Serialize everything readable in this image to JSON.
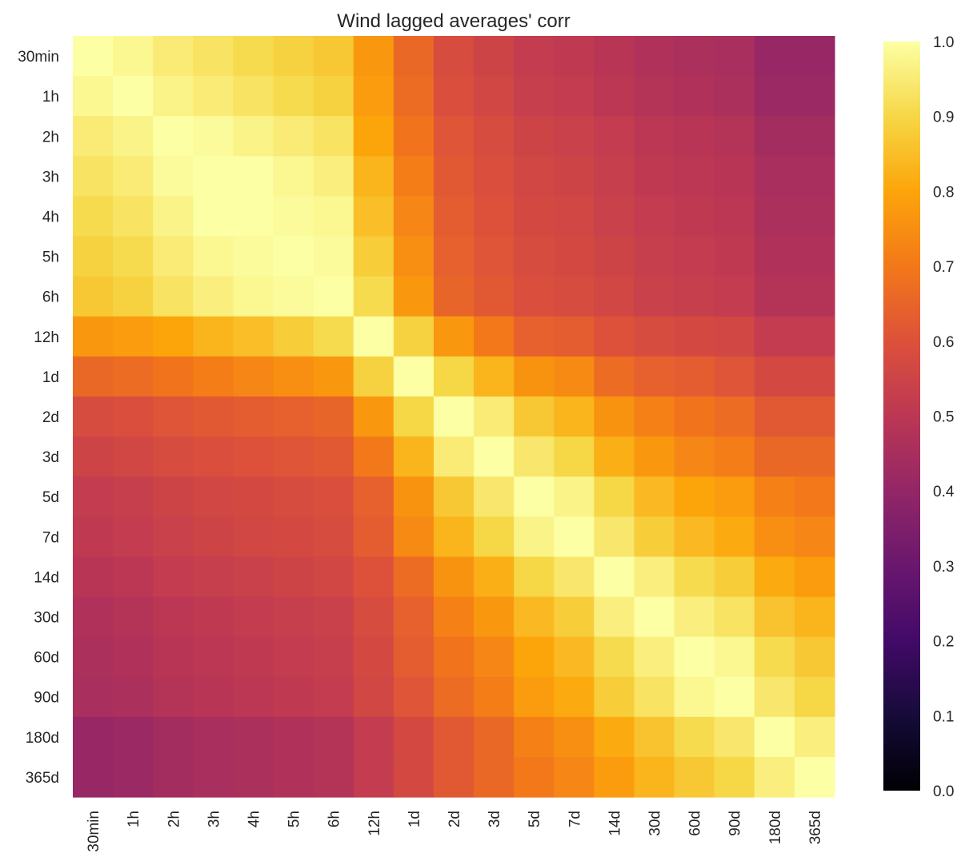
{
  "chart_data": {
    "type": "heatmap",
    "title": "Wind lagged averages' corr",
    "xlabel": "",
    "ylabel": "",
    "categories": [
      "30min",
      "1h",
      "2h",
      "3h",
      "4h",
      "5h",
      "6h",
      "12h",
      "1d",
      "2d",
      "3d",
      "5d",
      "7d",
      "14d",
      "30d",
      "60d",
      "90d",
      "180d",
      "365d"
    ],
    "colormap": "inferno",
    "value_range": [
      0.0,
      1.0
    ],
    "colorbar_ticks": [
      "0.0",
      "0.1",
      "0.2",
      "0.3",
      "0.4",
      "0.5",
      "0.6",
      "0.7",
      "0.8",
      "0.9",
      "1.0"
    ],
    "grid": false,
    "legend": "colorbar-right",
    "matrix": [
      [
        1.0,
        0.98,
        0.95,
        0.93,
        0.91,
        0.89,
        0.87,
        0.77,
        0.66,
        0.58,
        0.55,
        0.52,
        0.51,
        0.49,
        0.47,
        0.46,
        0.45,
        0.41,
        0.41
      ],
      [
        0.98,
        1.0,
        0.97,
        0.95,
        0.93,
        0.91,
        0.89,
        0.78,
        0.67,
        0.59,
        0.56,
        0.53,
        0.52,
        0.5,
        0.48,
        0.47,
        0.46,
        0.42,
        0.42
      ],
      [
        0.95,
        0.97,
        1.0,
        0.99,
        0.97,
        0.95,
        0.93,
        0.8,
        0.69,
        0.61,
        0.58,
        0.55,
        0.54,
        0.52,
        0.5,
        0.49,
        0.48,
        0.44,
        0.44
      ],
      [
        0.93,
        0.95,
        0.99,
        1.0,
        1.0,
        0.98,
        0.96,
        0.83,
        0.71,
        0.62,
        0.59,
        0.56,
        0.55,
        0.53,
        0.51,
        0.5,
        0.49,
        0.45,
        0.45
      ],
      [
        0.91,
        0.93,
        0.97,
        1.0,
        1.0,
        0.99,
        0.98,
        0.85,
        0.73,
        0.63,
        0.6,
        0.57,
        0.56,
        0.54,
        0.52,
        0.51,
        0.5,
        0.46,
        0.46
      ],
      [
        0.89,
        0.91,
        0.95,
        0.98,
        0.99,
        1.0,
        0.99,
        0.88,
        0.75,
        0.64,
        0.61,
        0.58,
        0.57,
        0.55,
        0.53,
        0.52,
        0.51,
        0.47,
        0.47
      ],
      [
        0.87,
        0.89,
        0.93,
        0.96,
        0.98,
        0.99,
        1.0,
        0.91,
        0.77,
        0.65,
        0.62,
        0.59,
        0.58,
        0.56,
        0.54,
        0.53,
        0.52,
        0.48,
        0.48
      ],
      [
        0.77,
        0.78,
        0.8,
        0.83,
        0.85,
        0.88,
        0.91,
        1.0,
        0.89,
        0.77,
        0.7,
        0.64,
        0.63,
        0.6,
        0.58,
        0.57,
        0.56,
        0.52,
        0.52
      ],
      [
        0.66,
        0.67,
        0.69,
        0.71,
        0.73,
        0.75,
        0.77,
        0.89,
        1.0,
        0.9,
        0.83,
        0.76,
        0.74,
        0.67,
        0.64,
        0.63,
        0.61,
        0.57,
        0.57
      ],
      [
        0.58,
        0.59,
        0.61,
        0.62,
        0.63,
        0.64,
        0.65,
        0.77,
        0.9,
        1.0,
        0.95,
        0.87,
        0.83,
        0.76,
        0.72,
        0.69,
        0.67,
        0.62,
        0.62
      ],
      [
        0.55,
        0.56,
        0.58,
        0.59,
        0.6,
        0.61,
        0.62,
        0.7,
        0.83,
        0.95,
        1.0,
        0.94,
        0.9,
        0.82,
        0.77,
        0.73,
        0.71,
        0.66,
        0.66
      ],
      [
        0.52,
        0.53,
        0.55,
        0.56,
        0.57,
        0.58,
        0.59,
        0.64,
        0.76,
        0.87,
        0.94,
        1.0,
        0.97,
        0.9,
        0.84,
        0.8,
        0.78,
        0.72,
        0.7
      ],
      [
        0.51,
        0.52,
        0.54,
        0.55,
        0.56,
        0.57,
        0.58,
        0.63,
        0.74,
        0.83,
        0.9,
        0.97,
        1.0,
        0.94,
        0.88,
        0.84,
        0.81,
        0.75,
        0.73
      ],
      [
        0.49,
        0.5,
        0.52,
        0.53,
        0.54,
        0.55,
        0.56,
        0.6,
        0.67,
        0.76,
        0.82,
        0.9,
        0.94,
        1.0,
        0.96,
        0.91,
        0.88,
        0.81,
        0.78
      ],
      [
        0.47,
        0.48,
        0.5,
        0.51,
        0.52,
        0.53,
        0.54,
        0.58,
        0.64,
        0.72,
        0.77,
        0.84,
        0.88,
        0.96,
        1.0,
        0.96,
        0.93,
        0.86,
        0.83
      ],
      [
        0.46,
        0.47,
        0.49,
        0.5,
        0.51,
        0.52,
        0.53,
        0.57,
        0.63,
        0.69,
        0.73,
        0.8,
        0.84,
        0.91,
        0.96,
        1.0,
        0.98,
        0.91,
        0.87
      ],
      [
        0.45,
        0.46,
        0.48,
        0.49,
        0.5,
        0.51,
        0.52,
        0.56,
        0.61,
        0.67,
        0.71,
        0.78,
        0.81,
        0.88,
        0.93,
        0.98,
        1.0,
        0.94,
        0.9
      ],
      [
        0.41,
        0.42,
        0.44,
        0.45,
        0.46,
        0.47,
        0.48,
        0.52,
        0.57,
        0.62,
        0.66,
        0.72,
        0.75,
        0.81,
        0.86,
        0.91,
        0.94,
        1.0,
        0.96
      ],
      [
        0.41,
        0.42,
        0.44,
        0.45,
        0.46,
        0.47,
        0.48,
        0.52,
        0.57,
        0.62,
        0.66,
        0.7,
        0.73,
        0.78,
        0.83,
        0.87,
        0.9,
        0.96,
        1.0
      ]
    ]
  }
}
